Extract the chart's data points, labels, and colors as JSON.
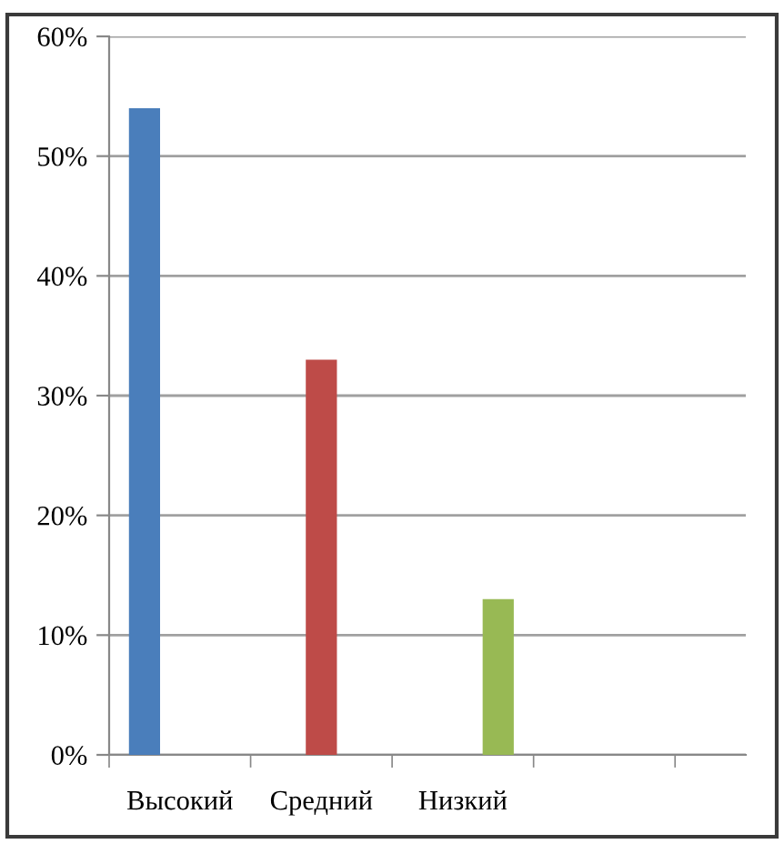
{
  "chart_data": {
    "type": "bar",
    "categories": [
      "Высокий",
      "Средний",
      "Низкий",
      null
    ],
    "series": [
      {
        "color": "#4a7ebb",
        "values": [
          54,
          null,
          null,
          null
        ]
      },
      {
        "color": "#be4b48",
        "values": [
          null,
          33,
          null,
          null
        ]
      },
      {
        "color": "#98b954",
        "values": [
          null,
          null,
          13,
          null
        ]
      }
    ],
    "ylim": [
      0,
      60
    ],
    "yticks": [
      {
        "value": 0,
        "label": "0%"
      },
      {
        "value": 10,
        "label": "10%"
      },
      {
        "value": 20,
        "label": "20%"
      },
      {
        "value": 30,
        "label": "30%"
      },
      {
        "value": 40,
        "label": "40%"
      },
      {
        "value": 50,
        "label": "50%"
      },
      {
        "value": 60,
        "label": "60%"
      }
    ],
    "grid": "y",
    "legend": false
  }
}
